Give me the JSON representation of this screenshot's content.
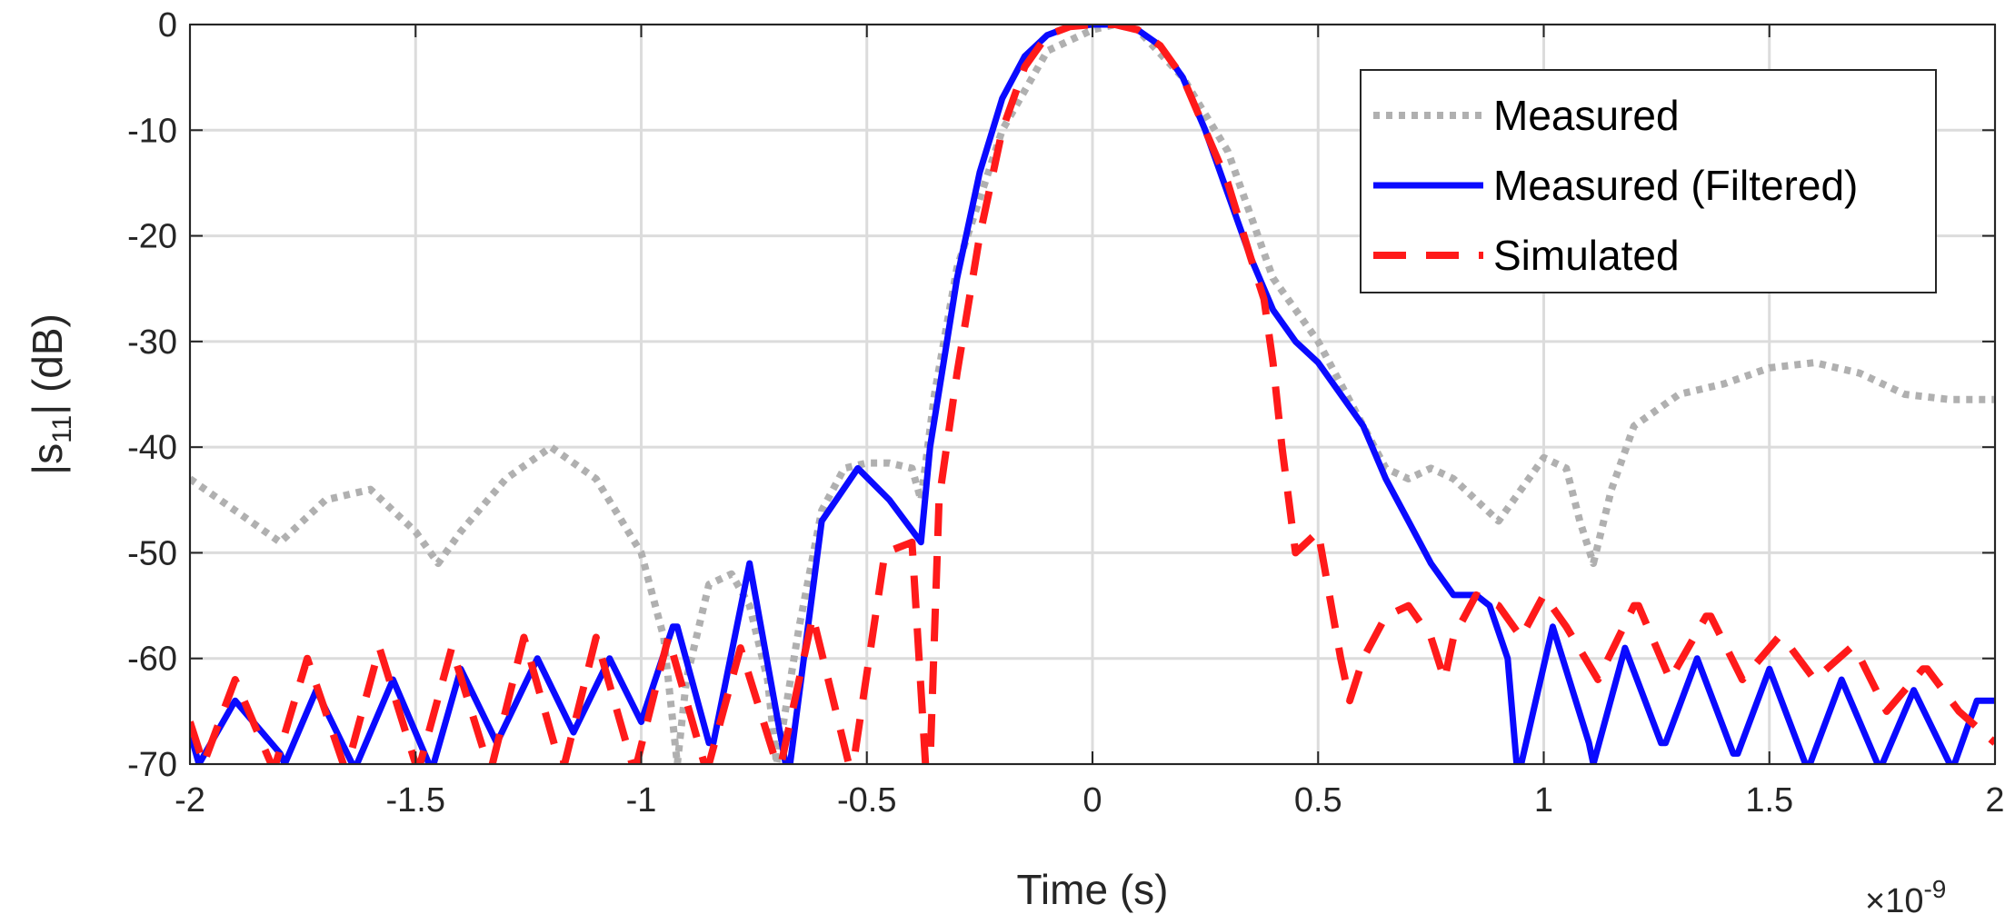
{
  "chart_data": {
    "type": "line",
    "title": "",
    "xlabel": "Time (s)",
    "ylabel_parts": {
      "pre": "|s",
      "sub": "11",
      "post": "| (dB)"
    },
    "x_exponent_label": {
      "base": "×10",
      "exp": "-9"
    },
    "xlim": [
      -2,
      2
    ],
    "ylim": [
      -70,
      0
    ],
    "grid": true,
    "legend_position": "top-right",
    "x_ticks": [
      -2,
      -1.5,
      -1,
      -0.5,
      0,
      0.5,
      1,
      1.5,
      2
    ],
    "x_tick_labels": [
      "-2",
      "-1.5",
      "-1",
      "-0.5",
      "0",
      "0.5",
      "1",
      "1.5",
      "2"
    ],
    "y_ticks": [
      0,
      -10,
      -20,
      -30,
      -40,
      -50,
      -60,
      -70
    ],
    "y_tick_labels": [
      "0",
      "-10",
      "-20",
      "-30",
      "-40",
      "-50",
      "-60",
      "-70"
    ],
    "series": [
      {
        "name": "Measured",
        "color": "#b0b0b0",
        "style": "dotted",
        "x": [
          -2.0,
          -1.9,
          -1.8,
          -1.7,
          -1.6,
          -1.5,
          -1.45,
          -1.4,
          -1.3,
          -1.2,
          -1.1,
          -1.0,
          -0.95,
          -0.92,
          -0.9,
          -0.85,
          -0.8,
          -0.76,
          -0.72,
          -0.7,
          -0.65,
          -0.6,
          -0.55,
          -0.5,
          -0.45,
          -0.4,
          -0.38,
          -0.35,
          -0.3,
          -0.2,
          -0.1,
          0.0,
          0.05,
          0.1,
          0.2,
          0.3,
          0.4,
          0.5,
          0.55,
          0.6,
          0.65,
          0.7,
          0.75,
          0.8,
          0.85,
          0.9,
          0.95,
          1.0,
          1.05,
          1.08,
          1.11,
          1.15,
          1.2,
          1.3,
          1.4,
          1.5,
          1.6,
          1.7,
          1.8,
          1.9,
          2.0
        ],
        "y": [
          -43,
          -46,
          -49,
          -45,
          -44,
          -48,
          -51,
          -48,
          -43,
          -40,
          -43,
          -50,
          -58,
          -70,
          -62,
          -53,
          -52,
          -55,
          -62,
          -70,
          -57,
          -46,
          -42,
          -41.5,
          -41.5,
          -42,
          -45,
          -35,
          -23,
          -10,
          -2.5,
          -0.5,
          0,
          -0.5,
          -5,
          -12,
          -24,
          -30,
          -34,
          -38,
          -42,
          -43,
          -42,
          -43,
          -45,
          -47,
          -44,
          -41,
          -42,
          -47,
          -51,
          -44,
          -38,
          -35,
          -34,
          -32.5,
          -32,
          -33,
          -35,
          -35.5,
          -35.5
        ]
      },
      {
        "name": "Measured (Filtered)",
        "color": "#0a0aff",
        "style": "solid",
        "x": [
          -2.0,
          -1.98,
          -1.9,
          -1.8,
          -1.79,
          -1.72,
          -1.64,
          -1.63,
          -1.55,
          -1.47,
          -1.46,
          -1.4,
          -1.32,
          -1.23,
          -1.15,
          -1.07,
          -1.0,
          -0.93,
          -0.92,
          -0.85,
          -0.84,
          -0.76,
          -0.68,
          -0.67,
          -0.6,
          -0.52,
          -0.45,
          -0.38,
          -0.36,
          -0.33,
          -0.3,
          -0.25,
          -0.2,
          -0.15,
          -0.1,
          -0.05,
          0.0,
          0.05,
          0.1,
          0.15,
          0.2,
          0.25,
          0.3,
          0.35,
          0.4,
          0.45,
          0.5,
          0.55,
          0.6,
          0.65,
          0.7,
          0.75,
          0.8,
          0.85,
          0.88,
          0.92,
          0.94,
          0.95,
          1.02,
          1.1,
          1.11,
          1.18,
          1.26,
          1.27,
          1.34,
          1.42,
          1.43,
          1.5,
          1.58,
          1.59,
          1.66,
          1.74,
          1.75,
          1.82,
          1.9,
          1.91,
          1.96,
          2.0
        ],
        "y": [
          -67,
          -70,
          -64,
          -69,
          -70,
          -63,
          -70,
          -70,
          -62,
          -70,
          -70,
          -61,
          -68,
          -60,
          -67,
          -60,
          -66,
          -57,
          -57,
          -68,
          -68,
          -51,
          -70,
          -70,
          -47,
          -42,
          -45,
          -49,
          -40,
          -32,
          -24,
          -14,
          -7,
          -3,
          -1,
          -0.2,
          0,
          0,
          -0.5,
          -2,
          -5,
          -10,
          -16,
          -22,
          -27,
          -30,
          -32,
          -35,
          -38,
          -43,
          -47,
          -51,
          -54,
          -54,
          -55,
          -60,
          -70,
          -70,
          -57,
          -68,
          -70,
          -59,
          -68,
          -68,
          -60,
          -69,
          -69,
          -61,
          -70,
          -70,
          -62,
          -70,
          -70,
          -63,
          -70,
          -70,
          -64,
          -64
        ]
      },
      {
        "name": "Simulated",
        "color": "#ff1a1a",
        "style": "dashed",
        "x": [
          -2.0,
          -1.97,
          -1.9,
          -1.82,
          -1.81,
          -1.74,
          -1.66,
          -1.65,
          -1.58,
          -1.5,
          -1.49,
          -1.42,
          -1.34,
          -1.33,
          -1.26,
          -1.18,
          -1.17,
          -1.1,
          -1.02,
          -1.01,
          -0.94,
          -0.86,
          -0.85,
          -0.78,
          -0.7,
          -0.69,
          -0.62,
          -0.54,
          -0.53,
          -0.46,
          -0.4,
          -0.37,
          -0.36,
          -0.34,
          -0.3,
          -0.25,
          -0.2,
          -0.15,
          -0.1,
          -0.05,
          0.0,
          0.05,
          0.1,
          0.15,
          0.2,
          0.25,
          0.3,
          0.35,
          0.38,
          0.4,
          0.42,
          0.45,
          0.5,
          0.55,
          0.57,
          0.6,
          0.65,
          0.7,
          0.75,
          0.78,
          0.8,
          0.85,
          0.9,
          0.95,
          1.0,
          1.05,
          1.12,
          1.2,
          1.21,
          1.28,
          1.36,
          1.37,
          1.44,
          1.52,
          1.53,
          1.6,
          1.68,
          1.69,
          1.76,
          1.84,
          1.85,
          1.92,
          2.0
        ],
        "y": [
          -66,
          -70,
          -62,
          -70,
          -70,
          -60,
          -70,
          -70,
          -59,
          -70,
          -70,
          -59,
          -70,
          -70,
          -58,
          -70,
          -70,
          -58,
          -70,
          -70,
          -58,
          -70,
          -70,
          -59,
          -70,
          -70,
          -56,
          -70,
          -70,
          -50,
          -49,
          -70,
          -70,
          -45,
          -33,
          -20,
          -10,
          -4,
          -1,
          -0.2,
          0,
          0,
          -0.5,
          -2,
          -5,
          -10,
          -15,
          -22,
          -26,
          -32,
          -40,
          -50,
          -48,
          -60,
          -64,
          -60,
          -56,
          -55,
          -58,
          -62,
          -58,
          -54,
          -55,
          -58,
          -54,
          -57,
          -62,
          -55,
          -55,
          -62,
          -56,
          -56,
          -62,
          -58,
          -58,
          -62,
          -59,
          -59,
          -65,
          -61,
          -61,
          -65,
          -68
        ]
      }
    ]
  }
}
